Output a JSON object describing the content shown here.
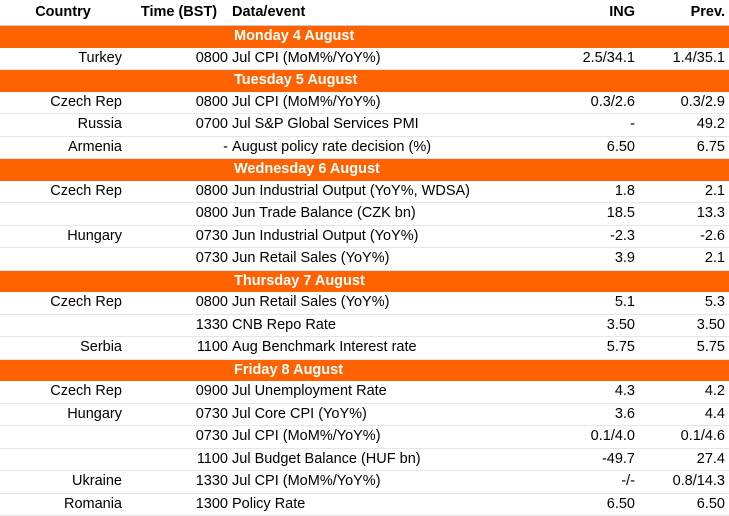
{
  "header": {
    "country": "Country",
    "time": "Time (BST)",
    "event": "Data/event",
    "ing": "ING",
    "prev": "Prev."
  },
  "days": [
    {
      "label": "Monday 4 August",
      "rows": [
        {
          "country": "Turkey",
          "time": "0800",
          "event": "Jul CPI (MoM%/YoY%)",
          "ing": "2.5/34.1",
          "prev": "1.4/35.1"
        }
      ]
    },
    {
      "label": "Tuesday 5 August",
      "rows": [
        {
          "country": "Czech Rep",
          "time": "0800",
          "event": "Jul CPI (MoM%/YoY%)",
          "ing": "0.3/2.6",
          "prev": "0.3/2.9"
        },
        {
          "country": "Russia",
          "time": "0700",
          "event": "Jul S&P Global Services PMI",
          "ing": "-",
          "prev": "49.2"
        },
        {
          "country": "Armenia",
          "time": "-",
          "event": "August policy rate decision (%)",
          "ing": "6.50",
          "prev": "6.75"
        }
      ]
    },
    {
      "label": "Wednesday 6 August",
      "rows": [
        {
          "country": "Czech Rep",
          "time": "0800",
          "event": "Jun Industrial Output (YoY%, WDSA)",
          "ing": "1.8",
          "prev": "2.1"
        },
        {
          "country": "",
          "time": "0800",
          "event": "Jun Trade Balance (CZK bn)",
          "ing": "18.5",
          "prev": "13.3"
        },
        {
          "country": "Hungary",
          "time": "0730",
          "event": "Jun Industrial Output (YoY%)",
          "ing": "-2.3",
          "prev": "-2.6"
        },
        {
          "country": "",
          "time": "0730",
          "event": "Jun Retail Sales (YoY%)",
          "ing": "3.9",
          "prev": "2.1"
        }
      ]
    },
    {
      "label": "Thursday 7 August",
      "rows": [
        {
          "country": "Czech Rep",
          "time": "0800",
          "event": "Jun Retail Sales (YoY%)",
          "ing": "5.1",
          "prev": "5.3"
        },
        {
          "country": "",
          "time": "1330",
          "event": "CNB Repo Rate",
          "ing": "3.50",
          "prev": "3.50"
        },
        {
          "country": "Serbia",
          "time": "1100",
          "event": "Aug Benchmark Interest rate",
          "ing": "5.75",
          "prev": "5.75"
        }
      ]
    },
    {
      "label": "Friday 8 August",
      "rows": [
        {
          "country": "Czech Rep",
          "time": "0900",
          "event": "Jul Unemployment Rate",
          "ing": "4.3",
          "prev": "4.2"
        },
        {
          "country": "Hungary",
          "time": "0730",
          "event": "Jul Core CPI (YoY%)",
          "ing": "3.6",
          "prev": "4.4"
        },
        {
          "country": "",
          "time": "0730",
          "event": "Jul CPI (MoM%/YoY%)",
          "ing": "0.1/4.0",
          "prev": "0.1/4.6"
        },
        {
          "country": "",
          "time": "1100",
          "event": "Jul Budget Balance (HUF bn)",
          "ing": "-49.7",
          "prev": "27.4"
        },
        {
          "country": "Ukraine",
          "time": "1330",
          "event": "Jul CPI (MoM%/YoY%)",
          "ing": "-/-",
          "prev": "0.8/14.3"
        },
        {
          "country": "Romania",
          "time": "1300",
          "event": "Policy Rate",
          "ing": "6.50",
          "prev": "6.50"
        }
      ]
    }
  ]
}
